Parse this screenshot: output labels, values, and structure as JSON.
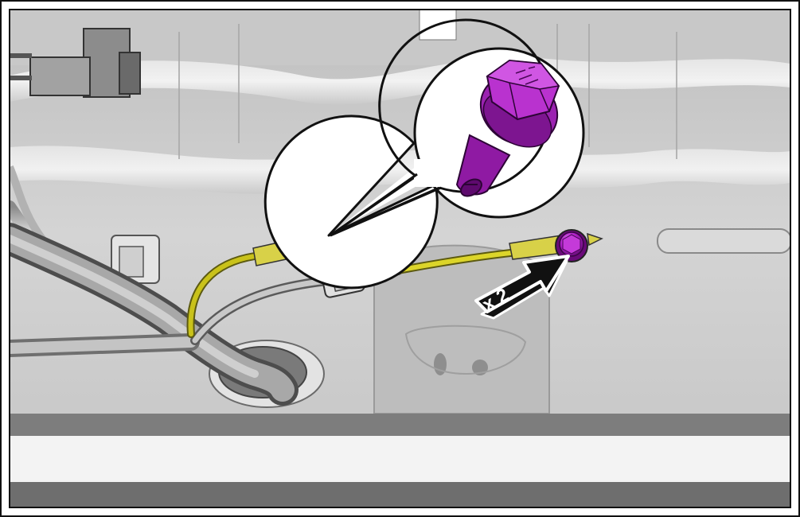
{
  "callout": {
    "quantity_label": "x 2"
  },
  "colors": {
    "bolt": "#b020c8",
    "bolt_dark": "#6a0a7a",
    "bolt_light": "#d56be6",
    "harness": "#c9c21a",
    "panel": "#cfcfcf",
    "panel_dark": "#9a9a9a",
    "outline": "#111111"
  },
  "icons": {
    "bolt": "flange-bolt-icon",
    "arrow": "arrow-pointer-icon",
    "detail": "magnified-detail-callout"
  }
}
